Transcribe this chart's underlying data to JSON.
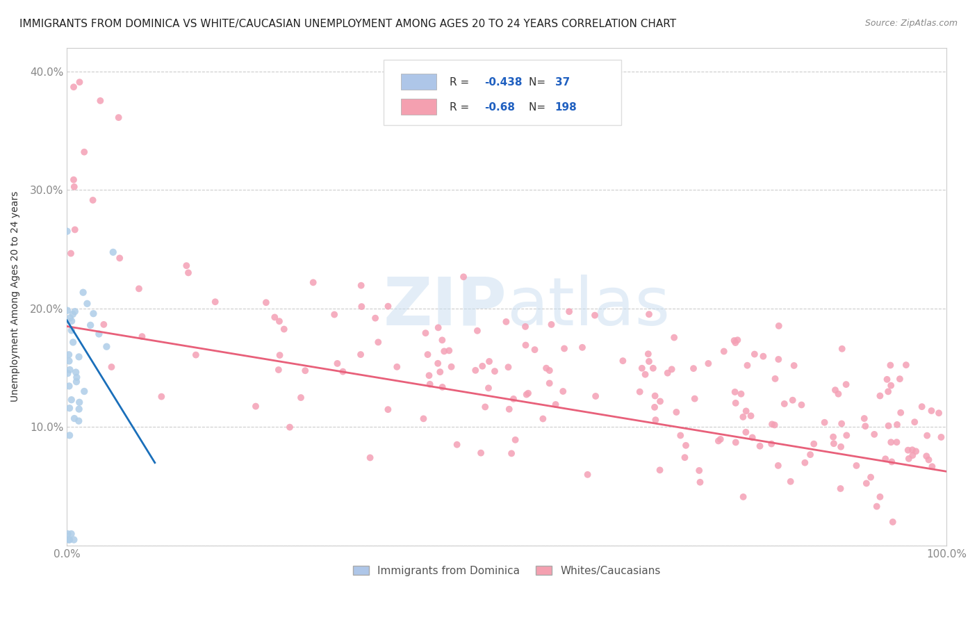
{
  "title": "IMMIGRANTS FROM DOMINICA VS WHITE/CAUCASIAN UNEMPLOYMENT AMONG AGES 20 TO 24 YEARS CORRELATION CHART",
  "source": "Source: ZipAtlas.com",
  "ylabel": "Unemployment Among Ages 20 to 24 years",
  "xlim": [
    0.0,
    1.0
  ],
  "ylim": [
    0.0,
    0.42
  ],
  "xticks": [
    0.0,
    0.1,
    0.2,
    0.3,
    0.4,
    0.5,
    0.6,
    0.7,
    0.8,
    0.9,
    1.0
  ],
  "xticklabels": [
    "0.0%",
    "",
    "",
    "",
    "",
    "",
    "",
    "",
    "",
    "",
    "100.0%"
  ],
  "yticks": [
    0.0,
    0.1,
    0.2,
    0.3,
    0.4
  ],
  "yticklabels": [
    "",
    "10.0%",
    "20.0%",
    "30.0%",
    "40.0%"
  ],
  "blue_R": -0.438,
  "blue_N": 37,
  "pink_R": -0.68,
  "pink_N": 198,
  "blue_color": "#aec6e8",
  "pink_color": "#f4a0b0",
  "blue_line_color": "#1a6fba",
  "pink_line_color": "#e8607a",
  "blue_scatter_color": "#aecde8",
  "pink_scatter_color": "#f4a0b5",
  "background_color": "#ffffff",
  "grid_color": "#cccccc",
  "title_fontsize": 11,
  "legend_R_color": "#2060c0",
  "yticklabel_color": "#4488cc",
  "xticklabel_color": "#4488cc"
}
